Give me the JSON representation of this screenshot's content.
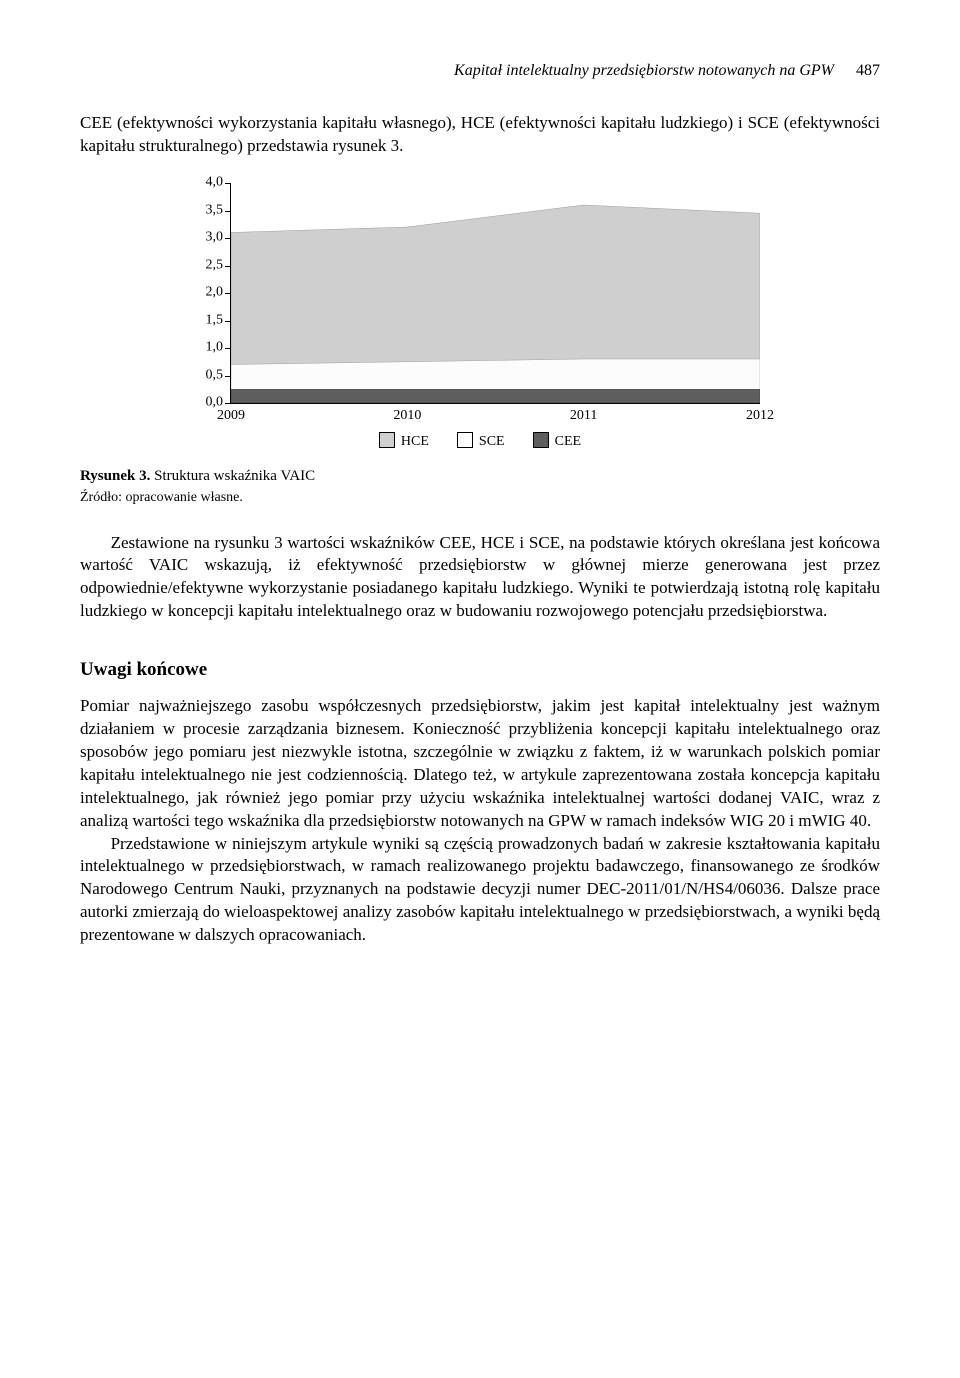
{
  "header": {
    "running_title": "Kapitał intelektualny przedsiębiorstw notowanych na GPW",
    "page_number": "487"
  },
  "intro_para": "CEE (efektywności wykorzystania kapitału własnego), HCE (efektywności kapitału ludzkiego) i SCE (efektywności kapitału strukturalnego) przedstawia rysunek 3.",
  "chart": {
    "type": "area",
    "ymin": 0.0,
    "ymax": 4.0,
    "ystep": 0.5,
    "yticks": [
      "0,0",
      "0,5",
      "1,0",
      "1,5",
      "2,0",
      "2,5",
      "3,0",
      "3,5",
      "4,0"
    ],
    "categories": [
      "2009",
      "2010",
      "2011",
      "2012"
    ],
    "series": [
      {
        "key": "HCE",
        "label": "HCE",
        "color": "#cfcfcf",
        "stroke": "#8a8a8a",
        "values": [
          2.4,
          2.45,
          2.8,
          2.65
        ]
      },
      {
        "key": "SCE",
        "label": "SCE",
        "color": "#fcfcfc",
        "stroke": "#8a8a8a",
        "values": [
          0.45,
          0.5,
          0.55,
          0.55
        ]
      },
      {
        "key": "CEE",
        "label": "CEE",
        "color": "#5e5e5e",
        "stroke": "#3a3a3a",
        "values": [
          0.25,
          0.25,
          0.25,
          0.25
        ]
      }
    ],
    "background_color": "#ffffff",
    "axis_color": "#000000",
    "tick_fontsize": 14
  },
  "figure": {
    "label": "Rysunek 3.",
    "title": "Struktura wskaźnika VAIC",
    "source": "Źródło: opracowanie własne."
  },
  "para2": "Zestawione na rysunku 3 wartości wskaźników CEE, HCE i SCE, na podstawie których określana jest końcowa wartość VAIC wskazują, iż efektywność przedsiębiorstw w głównej mierze generowana jest przez odpowiednie/efektywne wykorzystanie posiadanego kapitału ludzkiego. Wyniki te potwierdzają istotną rolę kapitału ludzkiego w koncepcji kapitału intelektualnego oraz w budowaniu rozwojowego potencjału przedsiębiorstwa.",
  "section_heading": "Uwagi końcowe",
  "para3": "Pomiar najważniejszego zasobu współczesnych przedsiębiorstw, jakim jest kapitał intelektualny jest ważnym działaniem w procesie zarządzania biznesem. Konieczność przybliżenia koncepcji kapitału intelektualnego oraz sposobów jego pomiaru jest niezwykle istotna, szczególnie w związku z faktem, iż w warunkach polskich pomiar kapitału intelektualnego nie jest codziennością. Dlatego też, w artykule zaprezentowana została koncepcja kapitału intelektualnego, jak również jego pomiar przy użyciu wskaźnika intelektualnej wartości dodanej VAIC, wraz z analizą wartości tego wskaźnika dla przedsiębiorstw notowanych na GPW w ramach indeksów WIG 20 i mWIG 40.",
  "para4": "Przedstawione w niniejszym artykule wyniki są częścią prowadzonych badań w zakresie kształtowania kapitału intelektualnego w przedsiębiorstwach, w ramach realizowanego projektu badawczego, finansowanego ze środków Narodowego Centrum Nauki, przyznanych na podstawie decyzji numer DEC-2011/01/N/HS4/06036. Dalsze prace autorki zmierzają do wieloaspektowej analizy zasobów kapitału intelektualnego w przedsiębiorstwach, a wyniki będą prezentowane w dalszych opracowaniach."
}
